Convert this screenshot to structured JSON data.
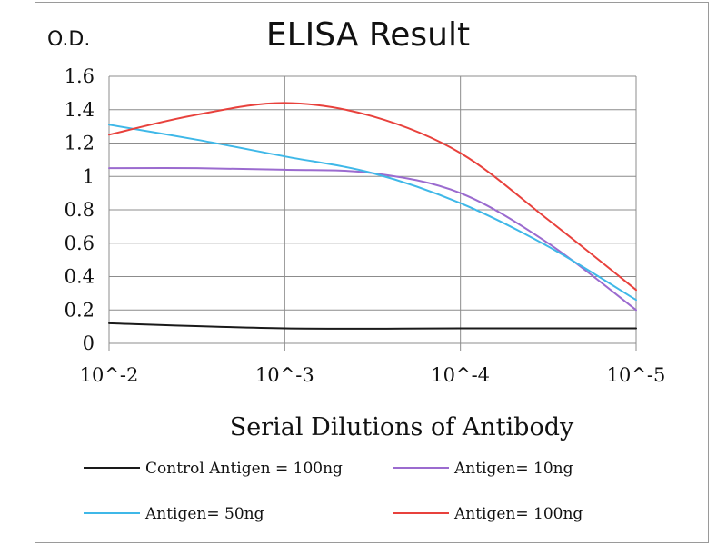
{
  "chart_data": {
    "type": "line",
    "title": "ELISA Result",
    "ylabel": "O.D.",
    "xlabel": "Serial Dilutions  of Antibody",
    "x": [
      0,
      1,
      2,
      3
    ],
    "x_tick_labels": [
      "10^-2",
      "10^-3",
      "10^-4",
      "10^-5"
    ],
    "ylim": [
      0,
      1.6
    ],
    "y_ticks": [
      0,
      0.2,
      0.4,
      0.6,
      0.8,
      1,
      1.2,
      1.4,
      1.6
    ],
    "y_tick_labels": [
      "0",
      "0.2",
      "0.4",
      "0.6",
      "0.8",
      "1",
      "1.2",
      "1.4",
      "1.6"
    ],
    "grid": true,
    "legend_position": "bottom",
    "series": [
      {
        "name": "Control Antigen = 100ng",
        "color": "#1a1a1a",
        "points": [
          [
            0,
            0.12
          ],
          [
            1,
            0.09
          ],
          [
            2,
            0.09
          ],
          [
            3,
            0.09
          ]
        ]
      },
      {
        "name": "Antigen= 10ng",
        "color": "#9b6bcf",
        "points": [
          [
            0,
            1.05
          ],
          [
            0.5,
            1.05
          ],
          [
            1,
            1.04
          ],
          [
            1.5,
            1.02
          ],
          [
            2,
            0.9
          ],
          [
            2.5,
            0.6
          ],
          [
            3,
            0.2
          ]
        ]
      },
      {
        "name": "Antigen= 50ng",
        "color": "#3fb8e8",
        "points": [
          [
            0,
            1.31
          ],
          [
            0.5,
            1.22
          ],
          [
            1,
            1.12
          ],
          [
            1.5,
            1.02
          ],
          [
            2,
            0.84
          ],
          [
            2.5,
            0.58
          ],
          [
            3,
            0.26
          ]
        ]
      },
      {
        "name": "Antigen= 100ng",
        "color": "#e8413c",
        "points": [
          [
            0,
            1.25
          ],
          [
            0.5,
            1.37
          ],
          [
            1,
            1.44
          ],
          [
            1.5,
            1.36
          ],
          [
            2,
            1.14
          ],
          [
            2.5,
            0.74
          ],
          [
            3,
            0.32
          ]
        ]
      }
    ]
  }
}
